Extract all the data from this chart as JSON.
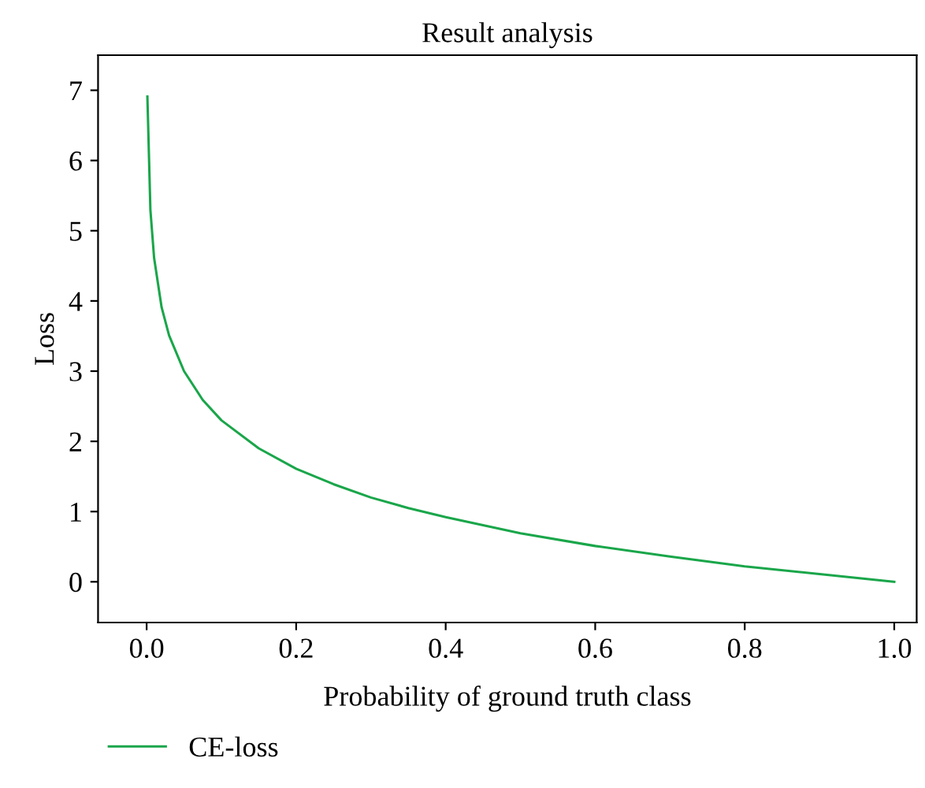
{
  "chart_data": {
    "type": "line",
    "title": "Result analysis",
    "xlabel": "Probability of ground truth class",
    "ylabel": "Loss",
    "x": [
      0.001,
      0.005,
      0.01,
      0.02,
      0.03,
      0.05,
      0.075,
      0.1,
      0.15,
      0.2,
      0.25,
      0.3,
      0.35,
      0.4,
      0.5,
      0.6,
      0.7,
      0.8,
      0.9,
      1.0
    ],
    "series": [
      {
        "name": "CE-loss",
        "color": "#1aa64a",
        "values": [
          6.91,
          5.3,
          4.61,
          3.91,
          3.51,
          3.0,
          2.59,
          2.3,
          1.9,
          1.61,
          1.39,
          1.2,
          1.05,
          0.92,
          0.69,
          0.51,
          0.36,
          0.22,
          0.11,
          0.0
        ]
      }
    ],
    "xlim": [
      -0.065,
      1.03
    ],
    "ylim": [
      -0.58,
      7.5
    ],
    "xticks": [
      {
        "value": 0,
        "label": "0.0"
      },
      0.2,
      0.4,
      0.6,
      0.8,
      {
        "value": 1,
        "label": "1.0"
      }
    ],
    "yticks": [
      0,
      1,
      2,
      3,
      4,
      5,
      6,
      7
    ],
    "grid": false,
    "legend": "bottom left",
    "marker": "none",
    "line_style": "solid"
  }
}
